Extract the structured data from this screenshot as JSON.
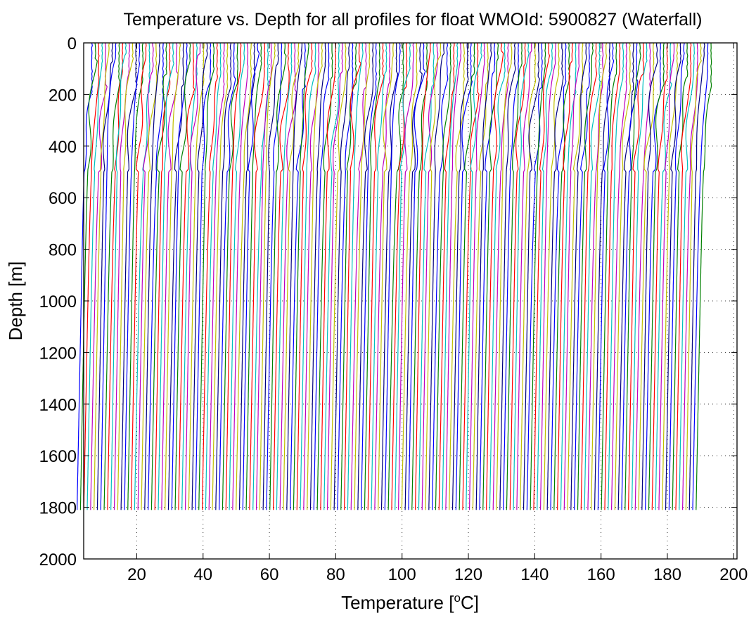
{
  "chart_data": {
    "type": "line",
    "title": "Temperature vs. Depth for all profiles for float WMOId: 5900827 (Waterfall)",
    "xlabel_main": "Temperature [",
    "xlabel_sup": "o",
    "xlabel_end": "C]",
    "ylabel": "Depth [m]",
    "xlim": [
      4,
      201
    ],
    "ylim": [
      0,
      2000
    ],
    "y_reversed": true,
    "grid": "dotted",
    "x_ticks": [
      20,
      40,
      60,
      80,
      100,
      120,
      140,
      160,
      180,
      200
    ],
    "y_ticks": [
      0,
      200,
      400,
      600,
      800,
      1000,
      1200,
      1400,
      1600,
      1800,
      2000
    ],
    "colors": [
      "#0000ff",
      "#008000",
      "#ff0000",
      "#00bfbf",
      "#bf00bf",
      "#bfbf00",
      "#000080"
    ],
    "profile_count": 184,
    "profile_spacing": 1.02,
    "first_profile_surface_temp": 6.5,
    "surface_depth": 0,
    "bottom_depth": 1810,
    "surface_to_bottom_temp_drop": 4.5
  }
}
